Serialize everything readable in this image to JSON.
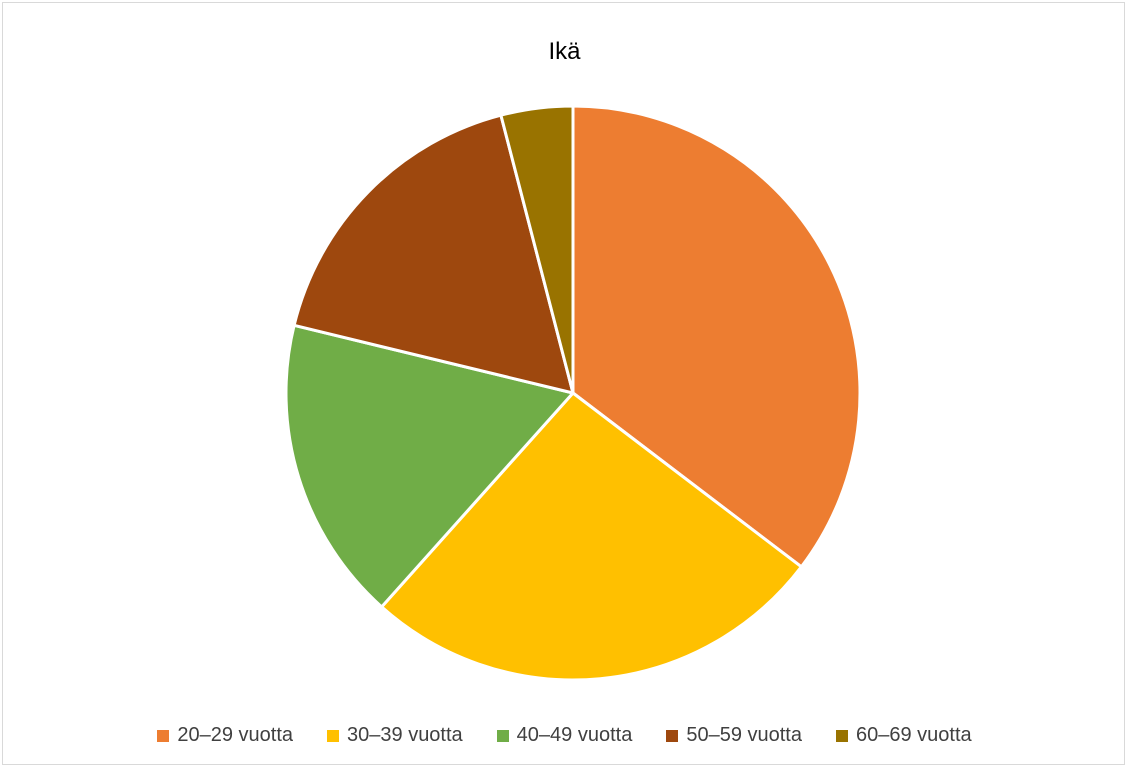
{
  "chart_data": {
    "type": "pie",
    "title": "Ikä",
    "categories": [
      "20–29 vuotta",
      "30–39 vuotta",
      "40–49 vuotta",
      "50–59 vuotta",
      "60–69 vuotta"
    ],
    "values": [
      35,
      26,
      17,
      17,
      4
    ],
    "colors": [
      "#ED7D31",
      "#FFC000",
      "#70AD47",
      "#9E480E",
      "#997300"
    ],
    "legend_position": "bottom",
    "start_angle_deg": 0,
    "direction": "clockwise"
  }
}
